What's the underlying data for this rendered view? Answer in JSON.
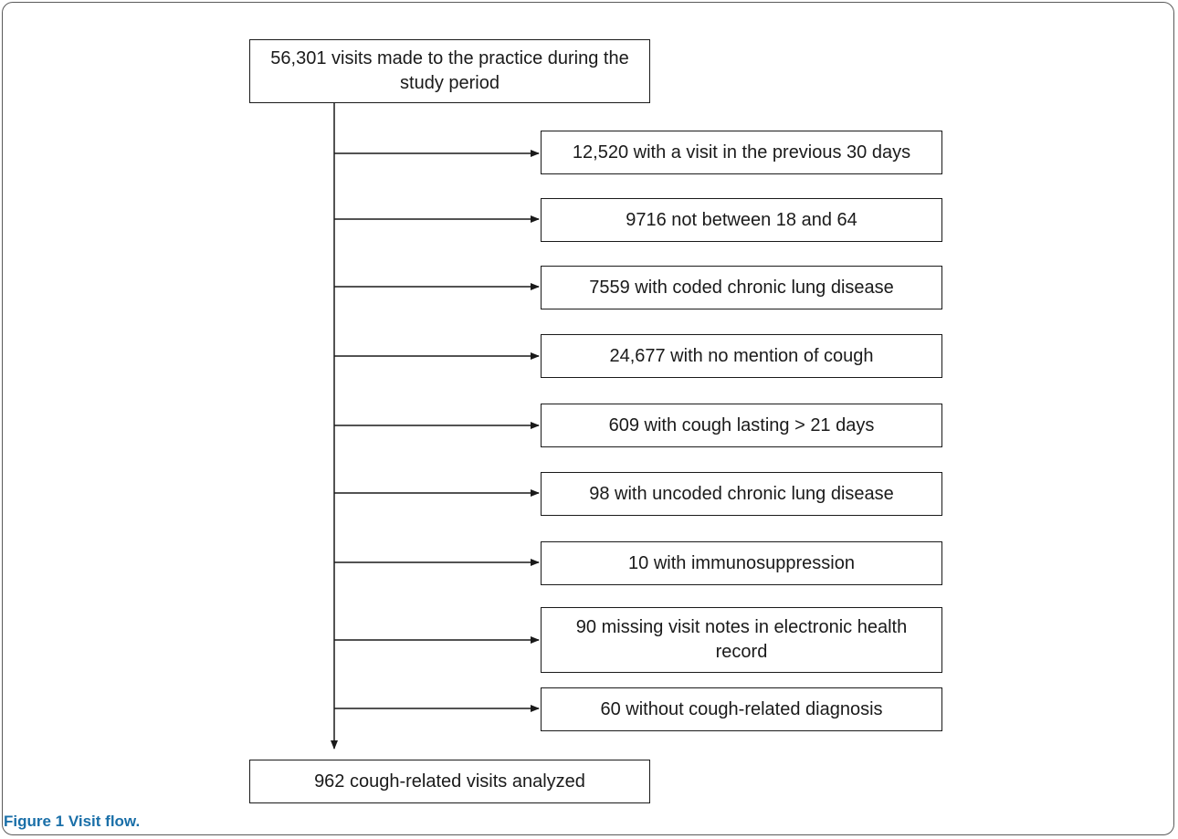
{
  "flow": {
    "start": "56,301 visits made to the practice during the study period",
    "exclusions": [
      "12,520 with a visit in the previous 30 days",
      "9716 not between 18 and 64",
      "7559 with coded chronic lung disease",
      "24,677 with no mention of cough",
      "609 with cough lasting > 21 days",
      "98 with uncoded chronic lung disease",
      "10 with immunosuppression",
      "90 missing visit notes in electronic health record",
      "60 without cough-related diagnosis"
    ],
    "end": "962 cough-related visits analyzed"
  },
  "caption": {
    "label": "Figure 1 Visit flow."
  }
}
